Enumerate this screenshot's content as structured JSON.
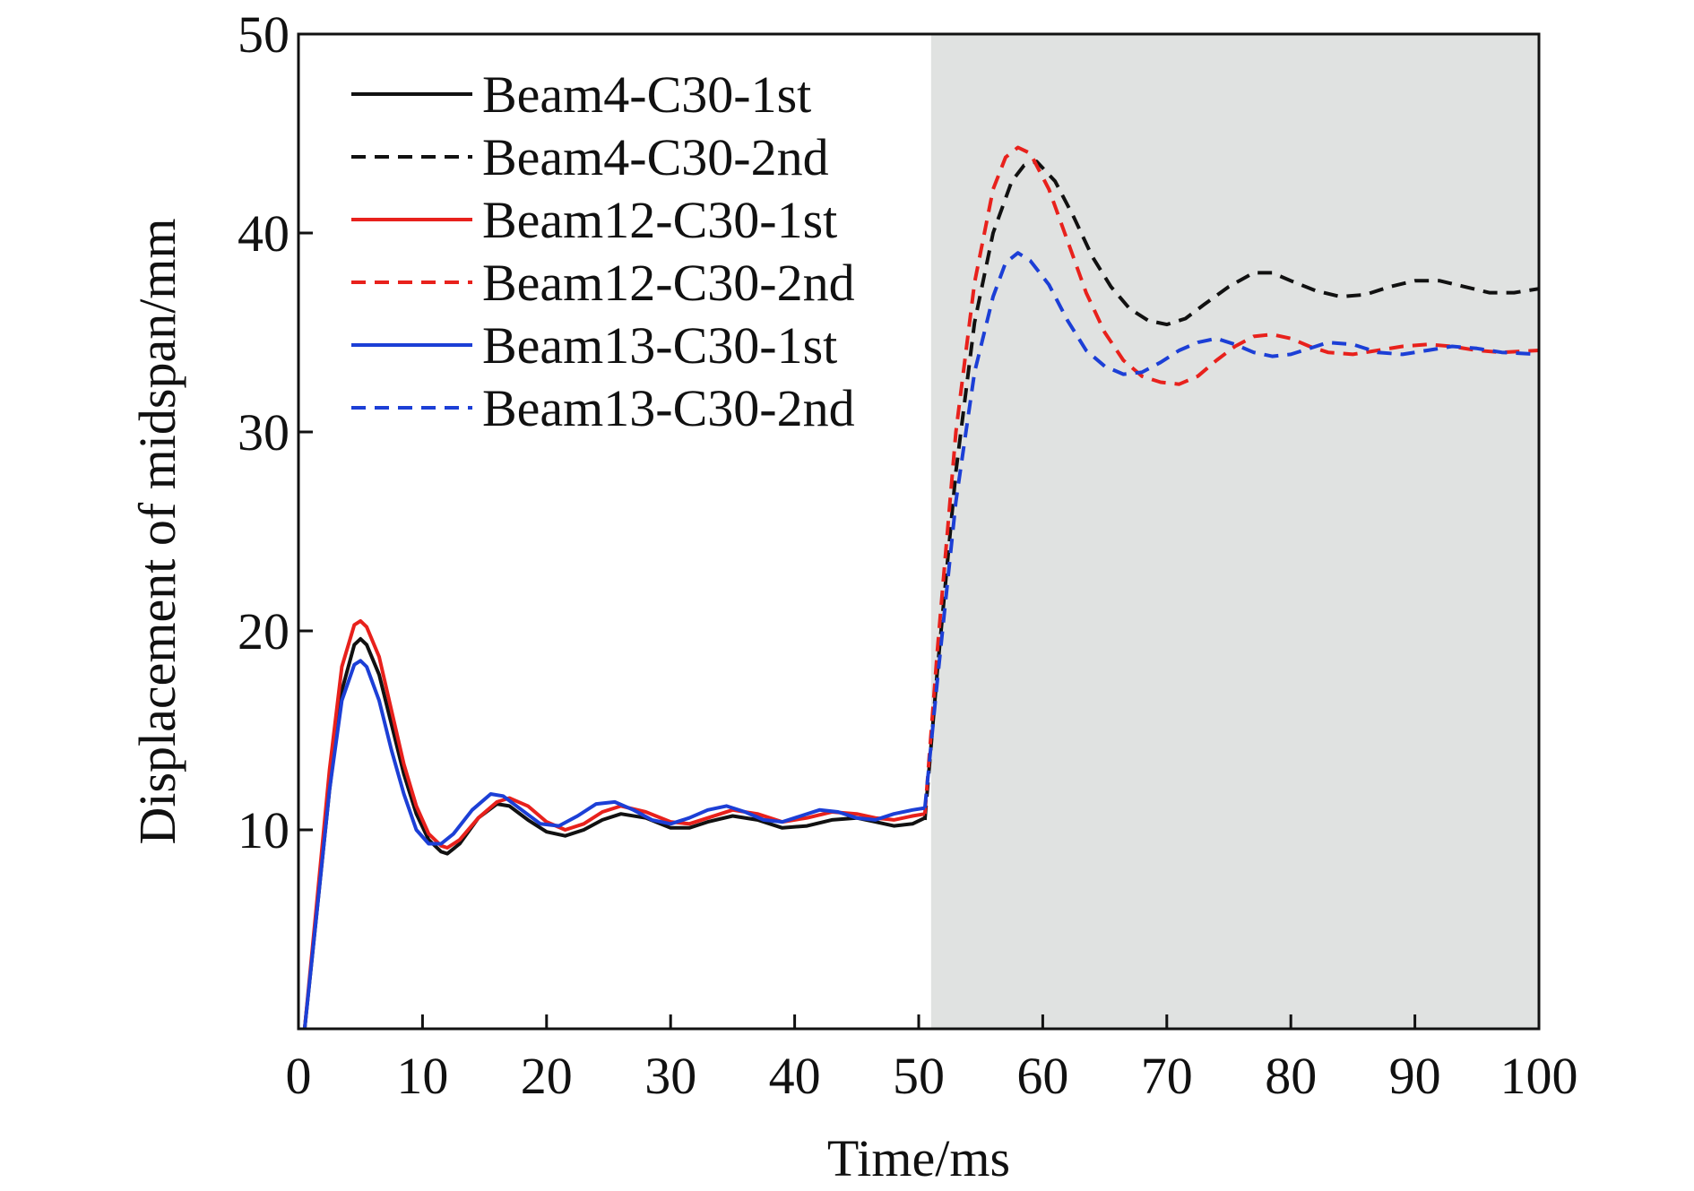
{
  "chart_data": {
    "type": "line",
    "title": "",
    "xlabel": "Time/ms",
    "ylabel": "Displacement of midspan/mm",
    "xlim": [
      0,
      100
    ],
    "ylim": [
      0,
      50
    ],
    "xticks": [
      0,
      10,
      20,
      30,
      40,
      50,
      60,
      70,
      80,
      90,
      100
    ],
    "yticks": [
      10,
      20,
      30,
      40,
      50
    ],
    "grid": false,
    "legend_position": "top-left",
    "shaded_region": {
      "x_start": 51,
      "x_end": 100,
      "color": "#e0e2e1"
    },
    "series": [
      {
        "name": "Beam4-C30-1st",
        "color": "#111111",
        "dash": "solid",
        "x": [
          0.5,
          1.5,
          2.5,
          3.5,
          4.5,
          5.0,
          5.5,
          6.5,
          7.5,
          8.5,
          9.5,
          10.5,
          11.5,
          12.0,
          13.0,
          14.5,
          16.0,
          17.0,
          18.5,
          20.0,
          21.5,
          23.0,
          24.5,
          26.0,
          28.0,
          30.0,
          31.5,
          33.0,
          35.0,
          37.0,
          39.0,
          41.0,
          43.0,
          45.0,
          46.5,
          48.0,
          49.5,
          50.5
        ],
        "y": [
          0.0,
          6.0,
          12.0,
          17.0,
          19.3,
          19.6,
          19.3,
          17.8,
          15.3,
          12.8,
          10.8,
          9.5,
          8.9,
          8.8,
          9.3,
          10.6,
          11.3,
          11.2,
          10.5,
          9.9,
          9.7,
          10.0,
          10.5,
          10.8,
          10.6,
          10.1,
          10.1,
          10.4,
          10.7,
          10.5,
          10.1,
          10.2,
          10.5,
          10.6,
          10.4,
          10.2,
          10.3,
          10.6
        ]
      },
      {
        "name": "Beam4-C30-2nd",
        "color": "#111111",
        "dash": "dashed",
        "x": [
          50.5,
          51.5,
          53.0,
          54.5,
          56.0,
          57.5,
          58.5,
          59.5,
          61.0,
          62.5,
          64.0,
          65.5,
          67.0,
          68.5,
          70.0,
          71.5,
          73.0,
          75.0,
          77.0,
          78.5,
          80.0,
          82.0,
          84.0,
          86.0,
          88.0,
          90.0,
          92.0,
          94.0,
          96.0,
          98.0,
          100.0
        ],
        "y": [
          10.5,
          18.0,
          28.0,
          35.5,
          40.0,
          42.6,
          43.4,
          43.6,
          42.6,
          40.8,
          38.8,
          37.3,
          36.2,
          35.6,
          35.4,
          35.7,
          36.4,
          37.3,
          38.0,
          38.0,
          37.6,
          37.1,
          36.8,
          36.9,
          37.3,
          37.6,
          37.6,
          37.3,
          37.0,
          37.0,
          37.2
        ]
      },
      {
        "name": "Beam12-C30-1st",
        "color": "#e8211c",
        "dash": "solid",
        "x": [
          0.5,
          1.5,
          2.5,
          3.5,
          4.5,
          5.0,
          5.5,
          6.5,
          7.5,
          8.5,
          9.5,
          10.5,
          11.5,
          12.0,
          13.0,
          14.5,
          16.0,
          17.0,
          18.5,
          20.0,
          21.5,
          23.0,
          24.5,
          26.0,
          28.0,
          30.0,
          31.5,
          33.0,
          35.0,
          37.0,
          39.0,
          41.0,
          43.0,
          45.0,
          46.5,
          48.0,
          49.5,
          50.5
        ],
        "y": [
          0.0,
          6.5,
          13.0,
          18.2,
          20.3,
          20.5,
          20.2,
          18.7,
          16.0,
          13.3,
          11.2,
          9.8,
          9.2,
          9.1,
          9.5,
          10.6,
          11.4,
          11.6,
          11.2,
          10.4,
          10.0,
          10.3,
          10.9,
          11.2,
          10.9,
          10.4,
          10.3,
          10.6,
          11.0,
          10.8,
          10.4,
          10.6,
          10.9,
          10.8,
          10.6,
          10.5,
          10.7,
          10.8
        ]
      },
      {
        "name": "Beam12-C30-2nd",
        "color": "#e8211c",
        "dash": "dashed",
        "x": [
          50.5,
          51.5,
          53.0,
          54.5,
          56.0,
          57.0,
          58.0,
          59.0,
          60.5,
          62.0,
          63.5,
          65.0,
          66.5,
          68.0,
          69.5,
          71.0,
          72.5,
          74.0,
          75.5,
          77.0,
          78.5,
          80.0,
          81.5,
          83.0,
          85.0,
          87.0,
          89.0,
          91.0,
          93.0,
          95.0,
          97.0,
          100.0
        ],
        "y": [
          10.8,
          19.0,
          30.0,
          37.5,
          42.2,
          43.8,
          44.3,
          44.0,
          42.2,
          39.6,
          37.0,
          35.0,
          33.6,
          32.8,
          32.5,
          32.4,
          32.8,
          33.6,
          34.3,
          34.8,
          34.9,
          34.7,
          34.3,
          34.0,
          33.9,
          34.1,
          34.3,
          34.4,
          34.3,
          34.1,
          34.0,
          34.1
        ]
      },
      {
        "name": "Beam13-C30-1st",
        "color": "#1c3fd6",
        "dash": "solid",
        "x": [
          0.5,
          1.5,
          2.5,
          3.5,
          4.5,
          5.0,
          5.5,
          6.5,
          7.5,
          8.5,
          9.5,
          10.5,
          11.5,
          12.5,
          14.0,
          15.5,
          16.5,
          18.0,
          19.5,
          21.0,
          22.5,
          24.0,
          25.5,
          27.0,
          28.5,
          30.0,
          31.5,
          33.0,
          34.5,
          36.0,
          37.5,
          39.0,
          40.5,
          42.0,
          43.5,
          45.0,
          46.5,
          48.0,
          49.5,
          50.5
        ],
        "y": [
          0.0,
          6.0,
          12.0,
          16.5,
          18.3,
          18.5,
          18.2,
          16.5,
          14.0,
          11.8,
          10.0,
          9.3,
          9.3,
          9.8,
          11.0,
          11.8,
          11.7,
          11.0,
          10.3,
          10.2,
          10.7,
          11.3,
          11.4,
          11.0,
          10.5,
          10.3,
          10.6,
          11.0,
          11.2,
          10.9,
          10.5,
          10.4,
          10.7,
          11.0,
          10.9,
          10.6,
          10.5,
          10.8,
          11.0,
          11.1
        ]
      },
      {
        "name": "Beam13-C30-2nd",
        "color": "#1c3fd6",
        "dash": "dashed",
        "x": [
          50.5,
          51.5,
          53.0,
          54.5,
          56.0,
          57.0,
          58.0,
          59.0,
          60.5,
          62.0,
          63.5,
          65.0,
          66.5,
          68.0,
          69.5,
          71.0,
          72.5,
          74.0,
          75.5,
          77.0,
          78.5,
          80.0,
          81.5,
          83.0,
          85.0,
          87.0,
          89.0,
          91.0,
          93.0,
          95.0,
          97.0,
          100.0
        ],
        "y": [
          11.1,
          17.5,
          26.5,
          33.0,
          36.8,
          38.5,
          39.0,
          38.6,
          37.4,
          35.6,
          34.1,
          33.3,
          32.9,
          33.0,
          33.5,
          34.1,
          34.5,
          34.7,
          34.4,
          34.0,
          33.8,
          33.9,
          34.2,
          34.5,
          34.4,
          34.0,
          33.9,
          34.1,
          34.3,
          34.2,
          34.0,
          33.9
        ]
      }
    ]
  }
}
